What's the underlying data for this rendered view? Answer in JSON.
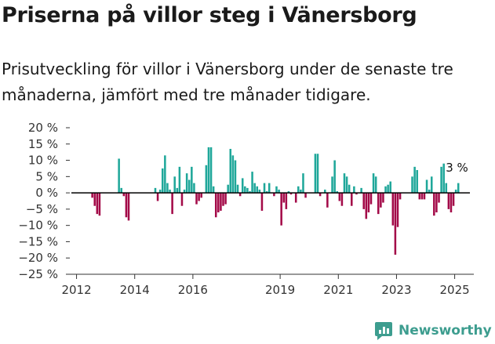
{
  "header": {
    "title": "Priserna på villor steg i Vänersborg",
    "subtitle": "Prisutveckling för villor i Vänersborg under de senaste tre månaderna, jämfört med tre månader tidigare."
  },
  "brand": {
    "name": "Newsworthy",
    "icon": "newsworthy-logo-icon",
    "color": "#3d9d8f"
  },
  "colors": {
    "positive": "#1fa79a",
    "negative": "#a30a48",
    "zero_line": "#000000"
  },
  "chart_data": {
    "type": "bar",
    "title": "",
    "xlabel": "",
    "ylabel": "",
    "ylim": [
      -25,
      20
    ],
    "xlim": [
      2011.85,
      2025.55
    ],
    "y_ticks": [
      20,
      15,
      10,
      5,
      0,
      -5,
      -10,
      -15,
      -20,
      -25
    ],
    "y_tick_labels": [
      "20 %",
      "15 %",
      "10 %",
      "5 %",
      "0 %",
      "−5 %",
      "−10 %",
      "−15 %",
      "−20 %",
      "−25 %"
    ],
    "x_ticks": [
      2012,
      2014,
      2016,
      2019,
      2021,
      2023,
      2025
    ],
    "x_tick_labels": [
      "2012",
      "2014",
      "2016",
      "2019",
      "2021",
      "2023",
      "2025"
    ],
    "grid": false,
    "last_value_label": "3 %",
    "series": [
      {
        "x": [
          "2012-07",
          "2012-08",
          "2012-09",
          "2012-10",
          "2012-11",
          "2012-12",
          "2013-01",
          "2013-02",
          "2013-03",
          "2013-04",
          "2013-05",
          "2013-06",
          "2013-07",
          "2013-08",
          "2013-09",
          "2013-10",
          "2013-11",
          "2013-12",
          "2014-01",
          "2014-02",
          "2014-03",
          "2014-04",
          "2014-05",
          "2014-06",
          "2014-07",
          "2014-08",
          "2014-09",
          "2014-10",
          "2014-11",
          "2014-12",
          "2015-01",
          "2015-02",
          "2015-03",
          "2015-04",
          "2015-05",
          "2015-06",
          "2015-07",
          "2015-08",
          "2015-09",
          "2015-10",
          "2015-11",
          "2015-12",
          "2016-01",
          "2016-02",
          "2016-03",
          "2016-04",
          "2016-05",
          "2016-06",
          "2016-07",
          "2016-08",
          "2016-09",
          "2016-10",
          "2016-11",
          "2016-12",
          "2017-01",
          "2017-02",
          "2017-03",
          "2017-04",
          "2017-05",
          "2017-06",
          "2017-07",
          "2017-08",
          "2017-09",
          "2017-10",
          "2017-11",
          "2017-12",
          "2018-01",
          "2018-02",
          "2018-03",
          "2018-04",
          "2018-05",
          "2018-06",
          "2018-07",
          "2018-08",
          "2018-09",
          "2018-10",
          "2018-11",
          "2018-12",
          "2019-01",
          "2019-02",
          "2019-03",
          "2019-04",
          "2019-05",
          "2019-06",
          "2019-07",
          "2019-08",
          "2019-09",
          "2019-10",
          "2019-11",
          "2019-12",
          "2020-01",
          "2020-02",
          "2020-03",
          "2020-04",
          "2020-05",
          "2020-06",
          "2020-07",
          "2020-08",
          "2020-09",
          "2020-10",
          "2020-11",
          "2020-12",
          "2021-01",
          "2021-02",
          "2021-03",
          "2021-04",
          "2021-05",
          "2021-06",
          "2021-07",
          "2021-08",
          "2021-09",
          "2021-10",
          "2021-11",
          "2021-12",
          "2022-01",
          "2022-02",
          "2022-03",
          "2022-04",
          "2022-05",
          "2022-06",
          "2022-07",
          "2022-08",
          "2022-09",
          "2022-10",
          "2022-11",
          "2022-12",
          "2023-01",
          "2023-02",
          "2023-03",
          "2023-04",
          "2023-05",
          "2023-06",
          "2023-07",
          "2023-08",
          "2023-09",
          "2023-10",
          "2023-11",
          "2023-12",
          "2024-01",
          "2024-02",
          "2024-03",
          "2024-04",
          "2024-05",
          "2024-06",
          "2024-07",
          "2024-08",
          "2024-09",
          "2024-10",
          "2024-11",
          "2024-12",
          "2025-01",
          "2025-02"
        ],
        "values": [
          -1.5,
          -4,
          -6.5,
          -7,
          0,
          0,
          0,
          0,
          0,
          0,
          0,
          10.5,
          1.5,
          -1,
          -7.5,
          -8.5,
          0,
          0,
          0,
          0,
          0,
          0,
          0,
          0,
          0,
          0,
          1.5,
          -2.5,
          1,
          7.5,
          11.5,
          3,
          1,
          -6.5,
          5,
          1.5,
          8,
          -4,
          1,
          6,
          4,
          8,
          3,
          -3.5,
          -2.5,
          -1.5,
          0,
          8.5,
          14,
          14,
          2,
          -7.5,
          -6,
          -5.5,
          -4,
          -3.5,
          2.5,
          13.5,
          11.5,
          10,
          2.5,
          -1,
          4.5,
          2,
          1.5,
          0.5,
          6.5,
          3,
          2,
          1,
          -5.5,
          3,
          0.5,
          3,
          0,
          -1,
          2,
          1,
          -10,
          -3,
          -5,
          0.5,
          -0.5,
          0,
          -3,
          2,
          1,
          6,
          -1.5,
          0,
          0,
          0,
          12,
          12,
          -1,
          0,
          1,
          -4.5,
          0,
          5,
          10,
          0.5,
          -2.5,
          -4,
          6,
          5,
          2.5,
          -4,
          2,
          -0.5,
          0,
          1.5,
          -5,
          -8,
          -6,
          -3.5,
          6,
          5,
          -6.5,
          -4.5,
          -3,
          2,
          2.5,
          3.5,
          -10,
          -19,
          -10.5,
          -2,
          0,
          0,
          0,
          0,
          5,
          8,
          7,
          -2,
          -2,
          -2,
          4,
          1,
          5,
          -7,
          -6,
          -3,
          8,
          9,
          3,
          -5,
          -6,
          -4,
          1,
          3
        ]
      }
    ]
  }
}
